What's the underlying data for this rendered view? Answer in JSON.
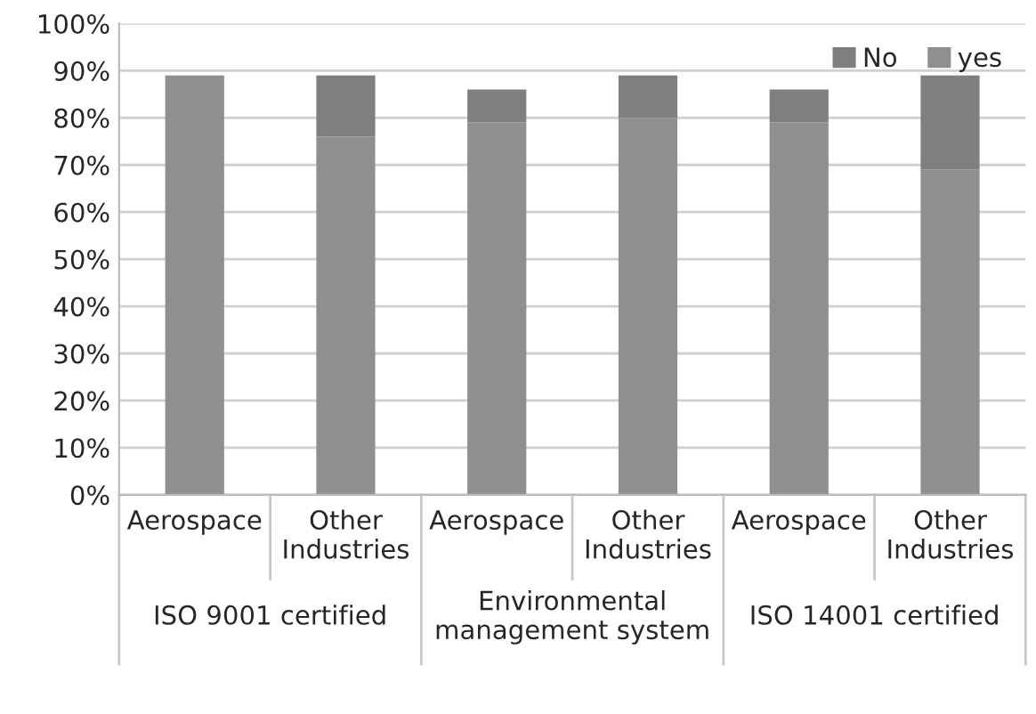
{
  "chart_data": {
    "type": "bar",
    "stacked": true,
    "categories": [
      "Aerospace",
      "Other\nIndustries",
      "Aerospace",
      "Other\nIndustries",
      "Aerospace",
      "Other\nIndustries"
    ],
    "series": [
      {
        "name": "yes",
        "color": "#8f8f8f",
        "values": [
          89,
          76,
          79,
          80,
          79,
          69
        ]
      },
      {
        "name": "No",
        "color": "#7f7f7f",
        "values": [
          0,
          13,
          7,
          9,
          7,
          20
        ]
      }
    ],
    "ylim": [
      0,
      100
    ],
    "yticks": [
      {
        "value": 0,
        "label": "0%"
      },
      {
        "value": 10,
        "label": "10%"
      },
      {
        "value": 20,
        "label": "20%"
      },
      {
        "value": 30,
        "label": "30%"
      },
      {
        "value": 40,
        "label": "40%"
      },
      {
        "value": 50,
        "label": "50%"
      },
      {
        "value": 60,
        "label": "60%"
      },
      {
        "value": 70,
        "label": "70%"
      },
      {
        "value": 80,
        "label": "80%"
      },
      {
        "value": 90,
        "label": "90%"
      },
      {
        "value": 100,
        "label": "100%"
      }
    ],
    "annotations": [
      "ISO 9001 certified",
      "Environmental\nmanagement system",
      "ISO 14001 certified"
    ],
    "grid": "y",
    "legend": "top right"
  }
}
